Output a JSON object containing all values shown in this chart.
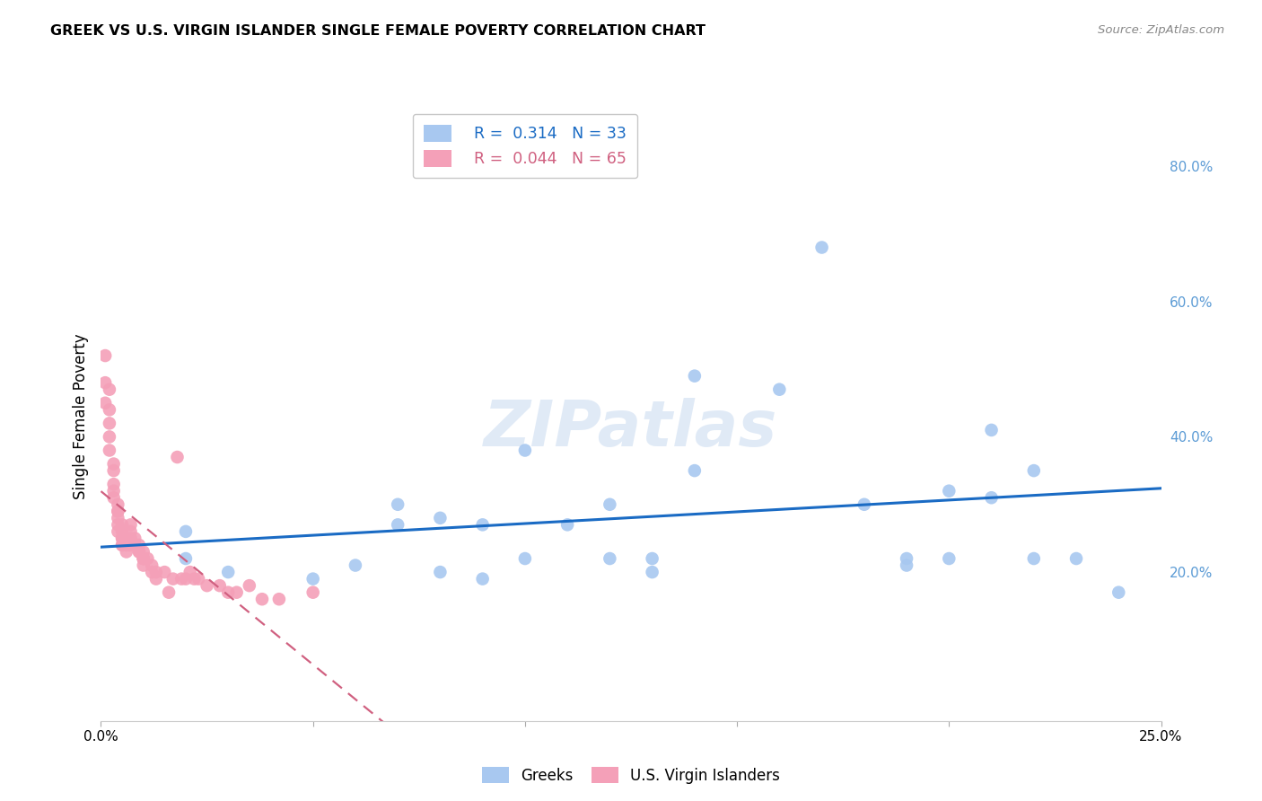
{
  "title": "GREEK VS U.S. VIRGIN ISLANDER SINGLE FEMALE POVERTY CORRELATION CHART",
  "source": "Source: ZipAtlas.com",
  "ylabel": "Single Female Poverty",
  "right_yticks": [
    0.0,
    0.2,
    0.4,
    0.6,
    0.8
  ],
  "right_yticklabels": [
    "",
    "20.0%",
    "40.0%",
    "60.0%",
    "80.0%"
  ],
  "xlim": [
    0.0,
    0.25
  ],
  "ylim": [
    -0.02,
    0.88
  ],
  "legend_blue_R": "0.314",
  "legend_blue_N": "33",
  "legend_pink_R": "0.044",
  "legend_pink_N": "65",
  "watermark": "ZIPatlas",
  "blue_color": "#a8c8f0",
  "pink_color": "#f4a0b8",
  "blue_line_color": "#1a6bc4",
  "pink_line_color": "#d06080",
  "grid_color": "#d8d8d8",
  "right_axis_color": "#5b9bd5",
  "blue_scatter_x": [
    0.02,
    0.02,
    0.03,
    0.05,
    0.06,
    0.07,
    0.07,
    0.08,
    0.08,
    0.09,
    0.09,
    0.1,
    0.1,
    0.11,
    0.12,
    0.12,
    0.13,
    0.13,
    0.14,
    0.14,
    0.16,
    0.17,
    0.18,
    0.19,
    0.19,
    0.2,
    0.2,
    0.21,
    0.21,
    0.22,
    0.22,
    0.23,
    0.24
  ],
  "blue_scatter_y": [
    0.22,
    0.26,
    0.2,
    0.19,
    0.21,
    0.3,
    0.27,
    0.28,
    0.2,
    0.19,
    0.27,
    0.38,
    0.22,
    0.27,
    0.22,
    0.3,
    0.22,
    0.2,
    0.35,
    0.49,
    0.47,
    0.68,
    0.3,
    0.22,
    0.21,
    0.32,
    0.22,
    0.41,
    0.31,
    0.22,
    0.35,
    0.22,
    0.17
  ],
  "pink_scatter_x": [
    0.001,
    0.001,
    0.001,
    0.002,
    0.002,
    0.002,
    0.002,
    0.002,
    0.003,
    0.003,
    0.003,
    0.003,
    0.003,
    0.004,
    0.004,
    0.004,
    0.004,
    0.004,
    0.004,
    0.005,
    0.005,
    0.005,
    0.005,
    0.005,
    0.005,
    0.006,
    0.006,
    0.006,
    0.007,
    0.007,
    0.007,
    0.007,
    0.008,
    0.008,
    0.008,
    0.009,
    0.009,
    0.009,
    0.01,
    0.01,
    0.01,
    0.01,
    0.01,
    0.011,
    0.012,
    0.012,
    0.013,
    0.013,
    0.015,
    0.016,
    0.017,
    0.018,
    0.019,
    0.02,
    0.021,
    0.022,
    0.023,
    0.025,
    0.028,
    0.03,
    0.032,
    0.035,
    0.038,
    0.042,
    0.05
  ],
  "pink_scatter_y": [
    0.52,
    0.48,
    0.45,
    0.47,
    0.44,
    0.42,
    0.4,
    0.38,
    0.36,
    0.35,
    0.33,
    0.32,
    0.31,
    0.3,
    0.29,
    0.29,
    0.28,
    0.27,
    0.26,
    0.27,
    0.26,
    0.25,
    0.25,
    0.24,
    0.24,
    0.24,
    0.24,
    0.23,
    0.27,
    0.26,
    0.25,
    0.24,
    0.25,
    0.24,
    0.24,
    0.24,
    0.23,
    0.23,
    0.23,
    0.22,
    0.22,
    0.22,
    0.21,
    0.22,
    0.21,
    0.2,
    0.2,
    0.19,
    0.2,
    0.17,
    0.19,
    0.37,
    0.19,
    0.19,
    0.2,
    0.19,
    0.19,
    0.18,
    0.18,
    0.17,
    0.17,
    0.18,
    0.16,
    0.16,
    0.17
  ]
}
